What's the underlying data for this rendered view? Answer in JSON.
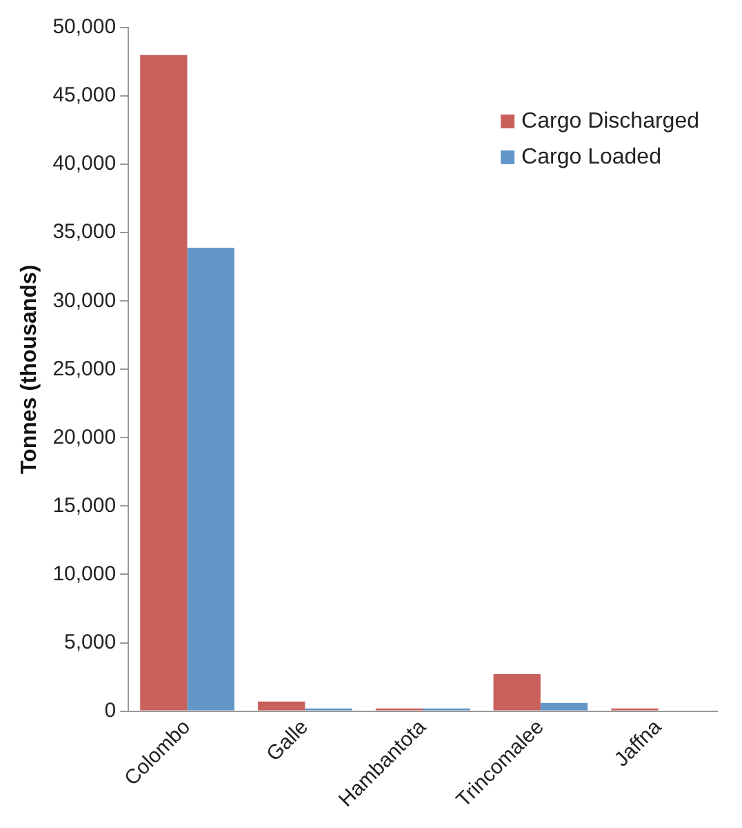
{
  "chart_data": {
    "type": "bar",
    "ylabel": "Tonnes (thousands)",
    "categories": [
      "Colombo",
      "Galle",
      "Hambantota",
      "Trincomalee",
      "Jaffna"
    ],
    "series": [
      {
        "name": "Cargo Discharged",
        "color": "#c9605c",
        "values": [
          48000,
          700,
          200,
          2700,
          200
        ]
      },
      {
        "name": "Cargo Loaded",
        "color": "#6397c9",
        "values": [
          33900,
          200,
          200,
          600,
          0
        ]
      }
    ],
    "ylim": [
      0,
      50000
    ],
    "yticks": [
      {
        "value": 0,
        "label": "0"
      },
      {
        "value": 5000,
        "label": "5,000"
      },
      {
        "value": 10000,
        "label": "10,000"
      },
      {
        "value": 15000,
        "label": "15,000"
      },
      {
        "value": 20000,
        "label": "20,000"
      },
      {
        "value": 25000,
        "label": "25,000"
      },
      {
        "value": 30000,
        "label": "30,000"
      },
      {
        "value": 35000,
        "label": "35,000"
      },
      {
        "value": 40000,
        "label": "40,000"
      },
      {
        "value": 45000,
        "label": "45,000"
      },
      {
        "value": 50000,
        "label": "50,000"
      }
    ],
    "grid": false,
    "legend": "top right"
  }
}
